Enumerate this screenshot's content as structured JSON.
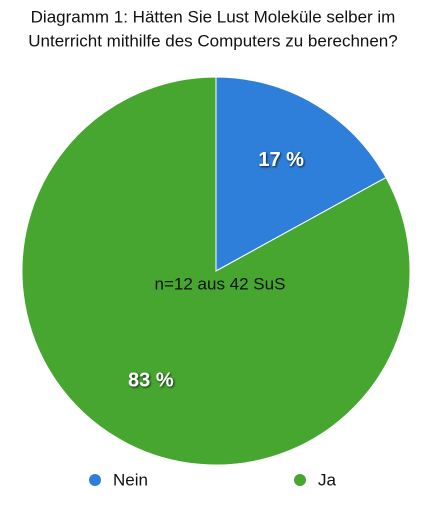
{
  "chart_data": {
    "type": "pie",
    "title": [
      "Diagramm 1: Hätten Sie Lust Moleküle selber im",
      "Unterricht mithilfe des Computers zu berechnen?"
    ],
    "annotation": "n=12 aus 42 SuS",
    "categories": [
      "Nein",
      "Ja"
    ],
    "values": [
      17,
      83
    ],
    "value_labels": [
      "17 %",
      "83 %"
    ],
    "colors": [
      "#2e7fd9",
      "#46a630"
    ],
    "legend": "bottom"
  }
}
